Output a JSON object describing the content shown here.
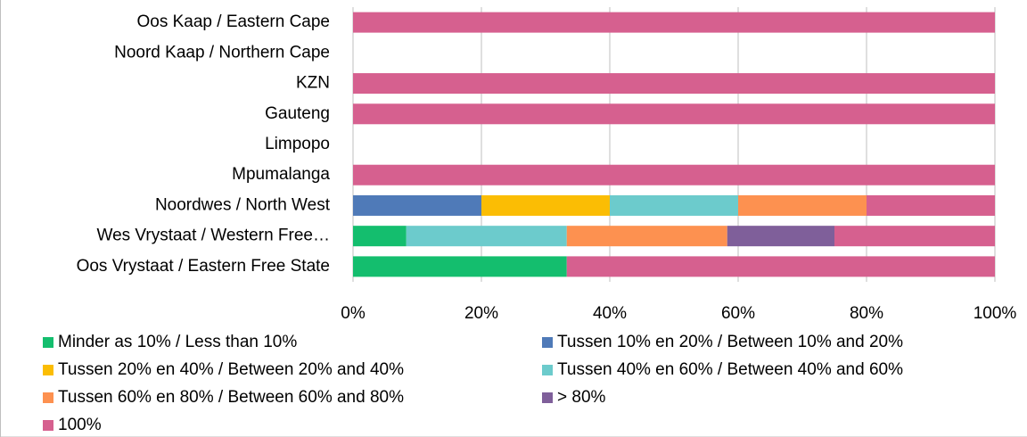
{
  "chart_data": {
    "type": "stacked_barh",
    "categories": [
      "Oos Kaap / Eastern Cape",
      "Noord Kaap / Northern Cape",
      "KZN",
      "Gauteng",
      "Limpopo",
      "Mpumalanga",
      "Noordwes / North West",
      "Wes Vrystaat / Western Free…",
      "Oos Vrystaat / Eastern Free State"
    ],
    "series": [
      {
        "name": "Minder as 10% / Less than 10%",
        "color": "#14be6e",
        "values": [
          0,
          0,
          0,
          0,
          0,
          0,
          0,
          8.3,
          33.3
        ]
      },
      {
        "name": "Tussen 10% en 20% / Between 10% and 20%",
        "color": "#4f7ab8",
        "values": [
          0,
          0,
          0,
          0,
          0,
          0,
          20,
          0,
          0
        ]
      },
      {
        "name": "Tussen 20% en 40% / Between 20% and 40%",
        "color": "#fbbd04",
        "values": [
          0,
          0,
          0,
          0,
          0,
          0,
          20,
          0,
          0
        ]
      },
      {
        "name": "Tussen 40% en 60% / Between 40% and 60%",
        "color": "#6ccbcc",
        "values": [
          0,
          0,
          0,
          0,
          0,
          0,
          20,
          25,
          0
        ]
      },
      {
        "name": "Tussen 60% en 80% / Between 60% and 80%",
        "color": "#fd9150",
        "values": [
          0,
          0,
          0,
          0,
          0,
          0,
          20,
          25,
          0
        ]
      },
      {
        "name": "> 80%",
        "color": "#7f5f9a",
        "values": [
          0,
          0,
          0,
          0,
          0,
          0,
          0,
          16.7,
          0
        ]
      },
      {
        "name": "100%",
        "color": "#d6608f",
        "values": [
          100,
          0,
          100,
          100,
          0,
          100,
          20,
          25,
          66.7
        ]
      }
    ],
    "xlim": [
      0,
      100
    ],
    "xticks": [
      {
        "value": 0,
        "label": "0%"
      },
      {
        "value": 20,
        "label": "20%"
      },
      {
        "value": 40,
        "label": "40%"
      },
      {
        "value": 60,
        "label": "60%"
      },
      {
        "value": 80,
        "label": "80%"
      },
      {
        "value": 100,
        "label": "100%"
      }
    ],
    "grid": true,
    "legend": "bottom"
  }
}
